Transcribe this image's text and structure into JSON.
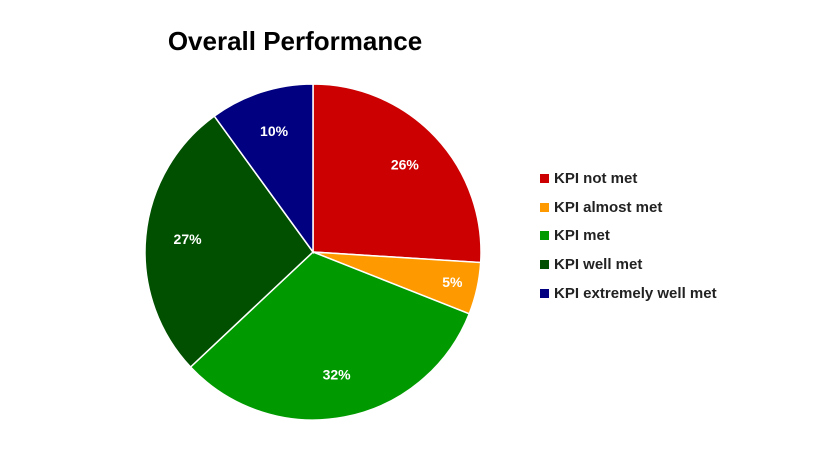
{
  "chart_data": {
    "type": "pie",
    "title": "Overall Performance",
    "legend_position": "right",
    "slices": [
      {
        "name": "KPI not met",
        "value": 26,
        "label": "26%",
        "color": "#cc0000"
      },
      {
        "name": "KPI almost met",
        "value": 5,
        "label": "5%",
        "color": "#ff9900"
      },
      {
        "name": "KPI met",
        "value": 32,
        "label": "32%",
        "color": "#009900"
      },
      {
        "name": "KPI well met",
        "value": 27,
        "label": "27%",
        "color": "#005000"
      },
      {
        "name": "KPI extremely well met",
        "value": 10,
        "label": "10%",
        "color": "#000080"
      }
    ]
  }
}
